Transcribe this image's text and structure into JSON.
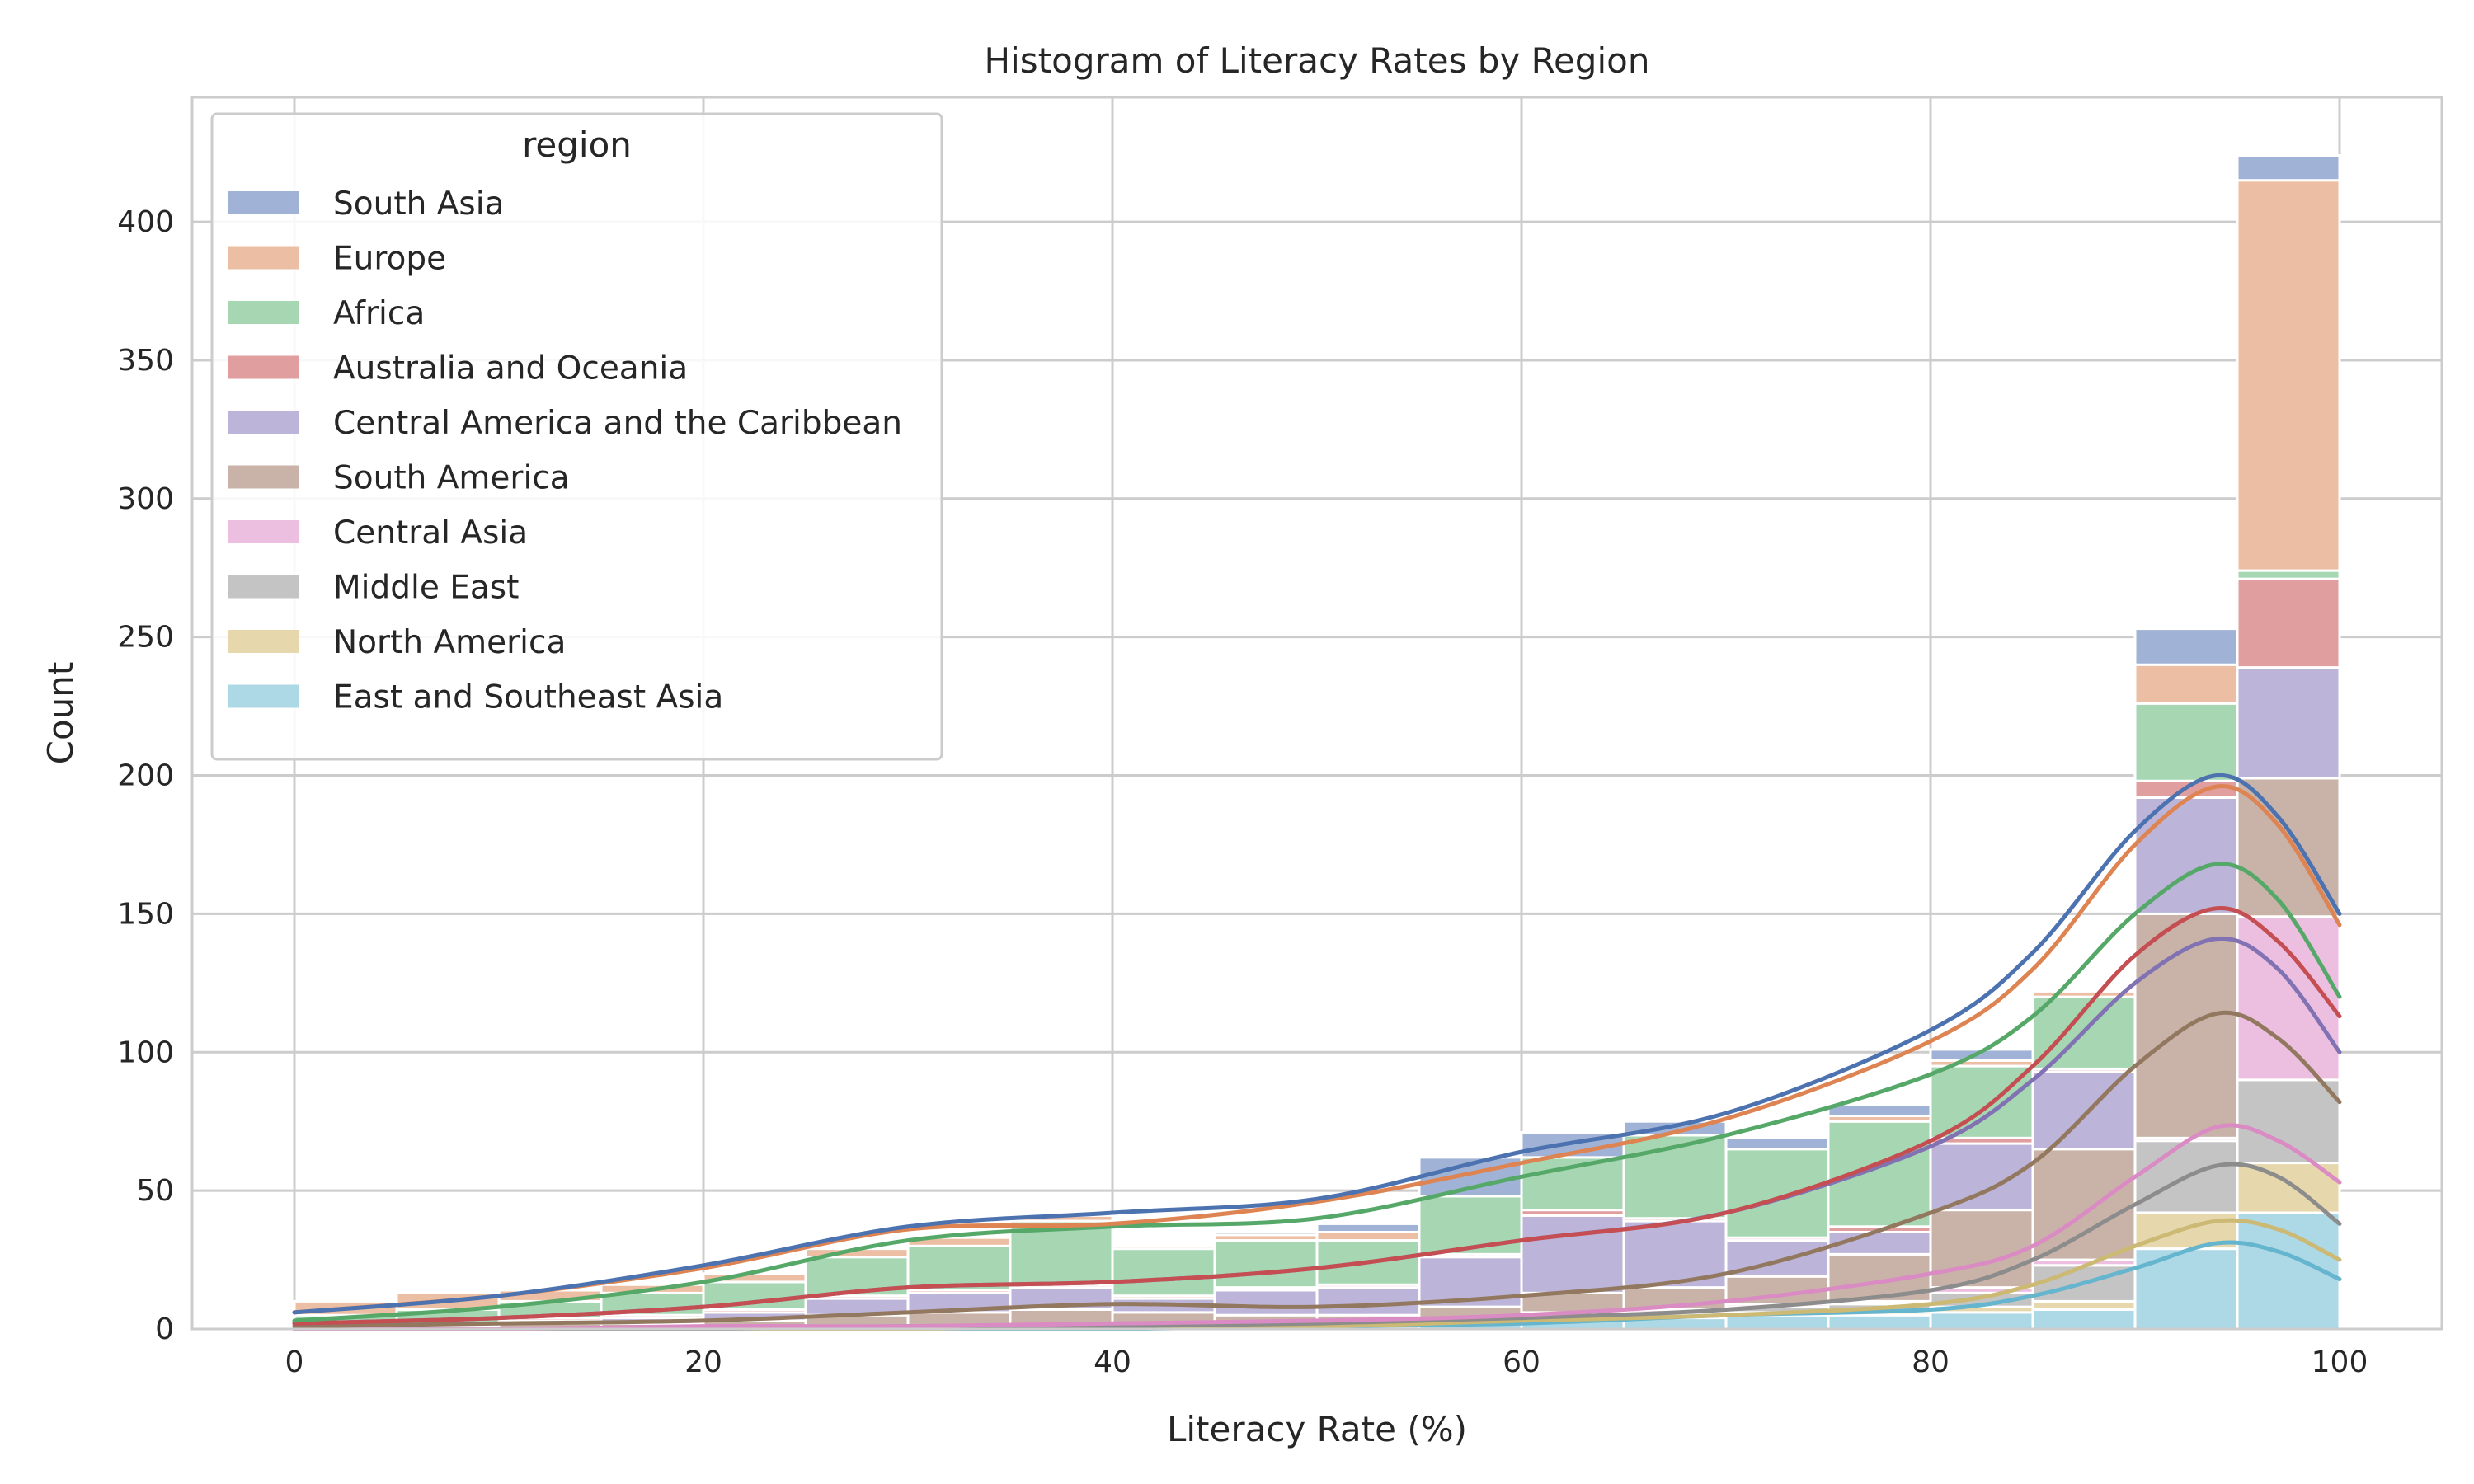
{
  "chart_data": {
    "type": "bar",
    "title": "Histogram of Literacy Rates by Region",
    "xlabel": "Literacy Rate (%)",
    "ylabel": "Count",
    "xlim": [
      -5,
      105
    ],
    "ylim": [
      0,
      445
    ],
    "xticks": [
      0,
      20,
      40,
      60,
      80,
      100
    ],
    "yticks": [
      0,
      50,
      100,
      150,
      200,
      250,
      300,
      350,
      400
    ],
    "grid": true,
    "stacked": true,
    "kde": true,
    "bin_edges": [
      0,
      5,
      10,
      15,
      20,
      25,
      30,
      35,
      40,
      45,
      50,
      55,
      60,
      65,
      70,
      75,
      80,
      85,
      90,
      95,
      100
    ],
    "legend": {
      "title": "region",
      "placement": "top-left"
    },
    "series": [
      {
        "name": "East and Southeast Asia",
        "color": "#add8e6",
        "values": [
          0,
          0,
          0,
          0,
          0,
          0,
          0,
          0,
          0,
          1,
          1,
          2,
          3,
          4,
          5,
          5,
          6,
          7,
          29,
          42
        ]
      },
      {
        "name": "North America",
        "color": "#e6d8ac",
        "values": [
          0,
          0,
          0,
          0,
          0,
          0,
          0,
          0,
          0,
          0,
          0,
          0,
          1,
          1,
          1,
          1,
          2,
          3,
          13,
          18
        ]
      },
      {
        "name": "Middle East",
        "color": "#c4c4c4",
        "values": [
          0,
          0,
          0,
          0,
          0,
          0,
          0,
          0,
          0,
          0,
          0,
          1,
          1,
          1,
          2,
          3,
          5,
          13,
          26,
          30
        ]
      },
      {
        "name": "Central Asia",
        "color": "#ecbfe0",
        "values": [
          0,
          0,
          0,
          0,
          0,
          0,
          0,
          0,
          0,
          0,
          0,
          0,
          1,
          1,
          1,
          1,
          2,
          2,
          1,
          59
        ]
      },
      {
        "name": "South America",
        "color": "#c9b3a8",
        "values": [
          1,
          1,
          2,
          2,
          3,
          5,
          6,
          7,
          6,
          4,
          4,
          5,
          7,
          8,
          10,
          17,
          28,
          40,
          81,
          50
        ]
      },
      {
        "name": "Central America and the Caribbean",
        "color": "#bdb5d9",
        "values": [
          0,
          0,
          1,
          2,
          3,
          6,
          7,
          8,
          5,
          9,
          10,
          18,
          28,
          24,
          13,
          8,
          24,
          28,
          42,
          40
        ]
      },
      {
        "name": "Australia and Oceania",
        "color": "#e09e9f",
        "values": [
          1,
          1,
          1,
          1,
          1,
          1,
          1,
          1,
          1,
          1,
          1,
          1,
          2,
          1,
          1,
          2,
          2,
          1,
          6,
          32
        ]
      },
      {
        "name": "Africa",
        "color": "#a7d6b2",
        "values": [
          3,
          5,
          6,
          8,
          10,
          14,
          16,
          23,
          17,
          17,
          16,
          21,
          19,
          30,
          32,
          38,
          26,
          26,
          28,
          3
        ]
      },
      {
        "name": "Europe",
        "color": "#ecbea3",
        "values": [
          5,
          6,
          4,
          3,
          3,
          3,
          3,
          2,
          1,
          2,
          3,
          0,
          0,
          0,
          0,
          2,
          2,
          2,
          14,
          141
        ]
      },
      {
        "name": "South Asia",
        "color": "#a0b3d6",
        "values": [
          0,
          0,
          0,
          0,
          0,
          0,
          0,
          1,
          0,
          1,
          3,
          14,
          9,
          5,
          4,
          4,
          4,
          0,
          13,
          9
        ]
      }
    ],
    "kde_curves": [
      {
        "name": "South Asia",
        "color": "#4c72b0",
        "x": [
          0,
          10,
          20,
          30,
          40,
          50,
          60,
          70,
          80,
          85,
          90,
          94,
          97,
          100
        ],
        "y": [
          6,
          12,
          23,
          37,
          42,
          47,
          64,
          78,
          108,
          136,
          180,
          200,
          185,
          150
        ]
      },
      {
        "name": "Europe",
        "color": "#dd8452",
        "x": [
          0,
          10,
          20,
          30,
          40,
          50,
          60,
          70,
          80,
          85,
          90,
          94,
          97,
          100
        ],
        "y": [
          6,
          12,
          22,
          36,
          38,
          46,
          60,
          76,
          104,
          130,
          175,
          196,
          182,
          146
        ]
      },
      {
        "name": "Africa",
        "color": "#55a868",
        "x": [
          0,
          10,
          20,
          30,
          40,
          50,
          60,
          70,
          80,
          85,
          90,
          94,
          97,
          100
        ],
        "y": [
          3,
          8,
          17,
          32,
          37,
          40,
          55,
          70,
          92,
          113,
          150,
          168,
          155,
          120
        ]
      },
      {
        "name": "Australia and Oceania",
        "color": "#c44e52",
        "x": [
          0,
          10,
          20,
          30,
          40,
          50,
          60,
          70,
          80,
          85,
          90,
          94,
          97,
          100
        ],
        "y": [
          2,
          4,
          8,
          15,
          17,
          22,
          32,
          42,
          68,
          95,
          135,
          152,
          140,
          113
        ]
      },
      {
        "name": "Central America and the Caribbean",
        "color": "#8172b3",
        "x": [
          0,
          10,
          20,
          30,
          40,
          50,
          60,
          70,
          80,
          85,
          90,
          94,
          97,
          100
        ],
        "y": [
          2,
          4,
          8,
          15,
          17,
          22,
          32,
          42,
          66,
          90,
          125,
          141,
          130,
          100
        ]
      },
      {
        "name": "South America",
        "color": "#937860",
        "x": [
          0,
          10,
          20,
          30,
          40,
          50,
          60,
          70,
          80,
          85,
          90,
          94,
          97,
          100
        ],
        "y": [
          1,
          2,
          3,
          6,
          9,
          8,
          12,
          20,
          42,
          60,
          95,
          114,
          105,
          82
        ]
      },
      {
        "name": "Central Asia",
        "color": "#da8bc3",
        "x": [
          0,
          10,
          20,
          30,
          40,
          50,
          60,
          70,
          80,
          85,
          90,
          94,
          97,
          100
        ],
        "y": [
          0,
          0,
          1,
          1,
          2,
          3,
          5,
          10,
          20,
          30,
          55,
          73,
          68,
          53
        ]
      },
      {
        "name": "Middle East",
        "color": "#8c8c8c",
        "x": [
          0,
          10,
          20,
          30,
          40,
          50,
          60,
          70,
          80,
          85,
          90,
          94,
          97,
          100
        ],
        "y": [
          0,
          0,
          0,
          1,
          1,
          2,
          4,
          7,
          14,
          25,
          45,
          59,
          55,
          38
        ]
      },
      {
        "name": "North America",
        "color": "#ccb974",
        "x": [
          0,
          10,
          20,
          30,
          40,
          50,
          60,
          70,
          80,
          85,
          90,
          94,
          97,
          100
        ],
        "y": [
          0,
          0,
          0,
          0,
          1,
          1,
          3,
          5,
          9,
          16,
          30,
          39,
          36,
          25
        ]
      },
      {
        "name": "East and Southeast Asia",
        "color": "#64b5cd",
        "x": [
          0,
          10,
          20,
          30,
          40,
          50,
          60,
          70,
          80,
          85,
          90,
          94,
          97,
          100
        ],
        "y": [
          0,
          0,
          0,
          0,
          0,
          1,
          2,
          5,
          7,
          12,
          22,
          31,
          28,
          18
        ]
      }
    ],
    "legend_order": [
      "South Asia",
      "Europe",
      "Africa",
      "Australia and Oceania",
      "Central America and the Caribbean",
      "South America",
      "Central Asia",
      "Middle East",
      "North America",
      "East and Southeast Asia"
    ]
  }
}
